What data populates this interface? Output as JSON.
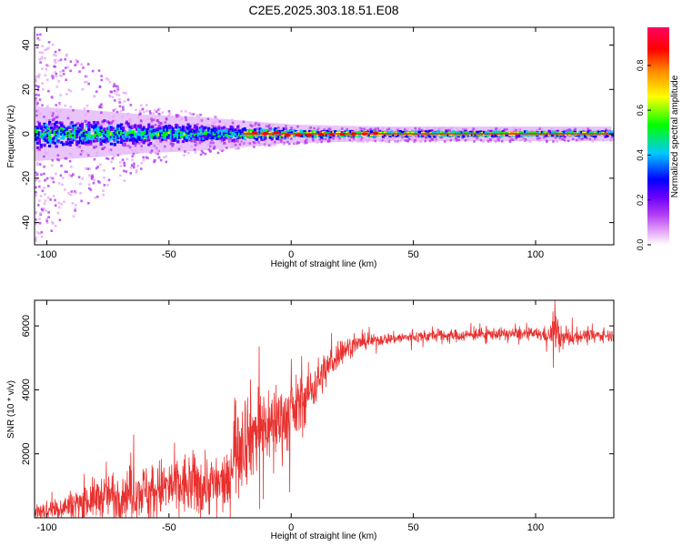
{
  "title": "C2E5.2025.303.18.51.E08",
  "colors": {
    "snr_line": "#e8312f",
    "spectrogram_background": "#ffffff",
    "axis": "#000000"
  },
  "chart_data": [
    {
      "type": "heatmap",
      "name": "spectrogram",
      "xlabel": "Height of straight line (km)",
      "ylabel": "Frequency (Hz)",
      "xlim": [
        -105,
        132
      ],
      "ylim": [
        -50,
        48
      ],
      "xticks": [
        -100,
        -50,
        0,
        50,
        100
      ],
      "yticks": [
        -40,
        -20,
        0,
        20,
        40
      ],
      "ridge_frequency_hz": 0,
      "colorbar": {
        "label": "Normalized spectral amplitude",
        "range": [
          0.0,
          0.97
        ],
        "ticks": [
          0.0,
          0.2,
          0.4,
          0.6,
          0.8
        ],
        "tick_labels": [
          "0.0",
          "0.2",
          "0.4",
          "0.6",
          "0.8"
        ],
        "colormap": [
          "#ffffff",
          "#e6a8f7",
          "#b03cf3",
          "#6a00ff",
          "#0000ff",
          "#00c8ff",
          "#00ff00",
          "#ffff00",
          "#ff8800",
          "#ff0000",
          "#ff0066"
        ]
      },
      "band_halfwidth_profile": {
        "x": [
          -105,
          -80,
          -60,
          -40,
          -20,
          0,
          20,
          40,
          132
        ],
        "noise_spread_hz": [
          48,
          30,
          14,
          10,
          6,
          4,
          3,
          3,
          3
        ],
        "core_halfwidth_hz": [
          6,
          5,
          4,
          3.5,
          2.5,
          1.5,
          1.2,
          1.0,
          1.0
        ]
      }
    },
    {
      "type": "line",
      "name": "snr",
      "xlabel": "Height of straight line (km)",
      "ylabel": "SNR (10 * v/v)",
      "xlim": [
        -105,
        132
      ],
      "ylim": [
        0,
        6800
      ],
      "xticks": [
        -100,
        -50,
        0,
        50,
        100
      ],
      "yticks": [
        2000,
        4000,
        6000
      ],
      "series": [
        {
          "name": "SNR",
          "envelope_x": [
            -105,
            -95,
            -85,
            -75,
            -65,
            -55,
            -45,
            -35,
            -30,
            -25,
            -24,
            -20,
            -15,
            -10,
            -5,
            0,
            5,
            10,
            15,
            20,
            25,
            30,
            35,
            40,
            50,
            60,
            70,
            80,
            90,
            100,
            106,
            108,
            110,
            120,
            132
          ],
          "envelope_mean": [
            200,
            300,
            500,
            700,
            800,
            900,
            1000,
            1050,
            1050,
            1050,
            2300,
            2500,
            2700,
            2900,
            3100,
            3200,
            3700,
            4200,
            4700,
            5200,
            5400,
            5500,
            5550,
            5600,
            5650,
            5700,
            5700,
            5750,
            5750,
            5750,
            5700,
            6000,
            5600,
            5700,
            5700
          ],
          "envelope_noise": [
            300,
            400,
            600,
            800,
            900,
            1000,
            1100,
            1100,
            1000,
            900,
            1800,
            1700,
            1600,
            1400,
            1300,
            1200,
            1000,
            800,
            600,
            500,
            300,
            250,
            200,
            200,
            200,
            200,
            200,
            200,
            200,
            200,
            300,
            800,
            400,
            200,
            200
          ]
        }
      ]
    }
  ]
}
